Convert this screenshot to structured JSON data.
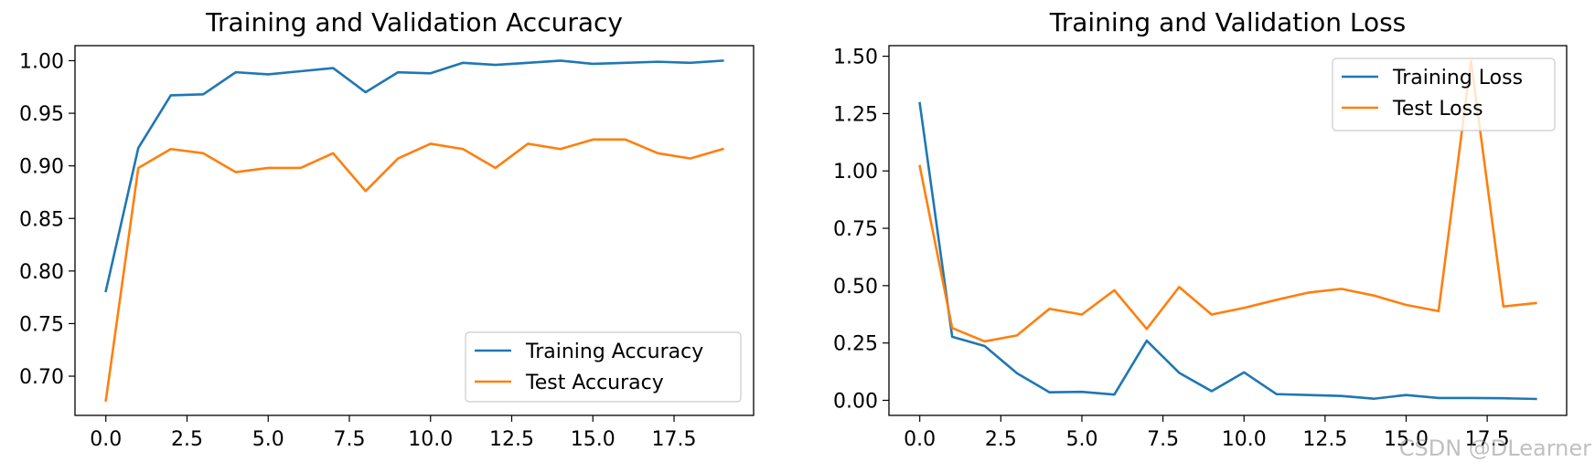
{
  "watermark": "CSDN @DLearner",
  "colors": {
    "training": "#1f77b4",
    "test": "#ff7f0e"
  },
  "chart_data": [
    {
      "type": "line",
      "title": "Training and Validation Accuracy",
      "xlabel": "",
      "ylabel": "",
      "xlim": [
        -0.95,
        19.95
      ],
      "ylim": [
        0.6627,
        1.0143
      ],
      "xticks": [
        "0.0",
        "2.5",
        "5.0",
        "7.5",
        "10.0",
        "12.5",
        "15.0",
        "17.5"
      ],
      "yticks": [
        "0.70",
        "0.75",
        "0.80",
        "0.85",
        "0.90",
        "0.95",
        "1.00"
      ],
      "legend_loc": "lower right",
      "x": [
        0,
        1,
        2,
        3,
        4,
        5,
        6,
        7,
        8,
        9,
        10,
        11,
        12,
        13,
        14,
        15,
        16,
        17,
        18,
        19
      ],
      "series": [
        {
          "name": "Training Accuracy",
          "color": "#1f77b4",
          "values": [
            0.781,
            0.917,
            0.967,
            0.968,
            0.989,
            0.987,
            0.99,
            0.993,
            0.97,
            0.989,
            0.988,
            0.998,
            0.996,
            0.998,
            1.0,
            0.997,
            0.998,
            0.999,
            0.998,
            1.0
          ]
        },
        {
          "name": "Test Accuracy",
          "color": "#ff7f0e",
          "values": [
            0.677,
            0.898,
            0.916,
            0.912,
            0.894,
            0.898,
            0.898,
            0.912,
            0.876,
            0.907,
            0.921,
            0.916,
            0.898,
            0.921,
            0.916,
            0.925,
            0.925,
            0.912,
            0.907,
            0.916
          ]
        }
      ]
    },
    {
      "type": "line",
      "title": "Training and Validation Loss",
      "xlabel": "",
      "ylabel": "",
      "xlim": [
        -0.95,
        19.95
      ],
      "ylim": [
        -0.0657,
        1.5462
      ],
      "xticks": [
        "0.0",
        "2.5",
        "5.0",
        "7.5",
        "10.0",
        "12.5",
        "15.0",
        "17.5"
      ],
      "yticks": [
        "0.00",
        "0.25",
        "0.50",
        "0.75",
        "1.00",
        "1.25",
        "1.50"
      ],
      "legend_loc": "upper right",
      "x": [
        0,
        1,
        2,
        3,
        4,
        5,
        6,
        7,
        8,
        9,
        10,
        11,
        12,
        13,
        14,
        15,
        16,
        17,
        18,
        19
      ],
      "series": [
        {
          "name": "Training Loss",
          "color": "#1f77b4",
          "values": [
            1.295,
            0.277,
            0.237,
            0.118,
            0.035,
            0.037,
            0.025,
            0.26,
            0.12,
            0.04,
            0.122,
            0.027,
            0.023,
            0.019,
            0.007,
            0.023,
            0.01,
            0.01,
            0.009,
            0.006
          ]
        },
        {
          "name": "Test Loss",
          "color": "#ff7f0e",
          "values": [
            1.021,
            0.315,
            0.257,
            0.283,
            0.399,
            0.374,
            0.48,
            0.311,
            0.494,
            0.374,
            0.403,
            0.438,
            0.47,
            0.486,
            0.457,
            0.416,
            0.389,
            1.479,
            0.409,
            0.424
          ]
        }
      ]
    }
  ]
}
